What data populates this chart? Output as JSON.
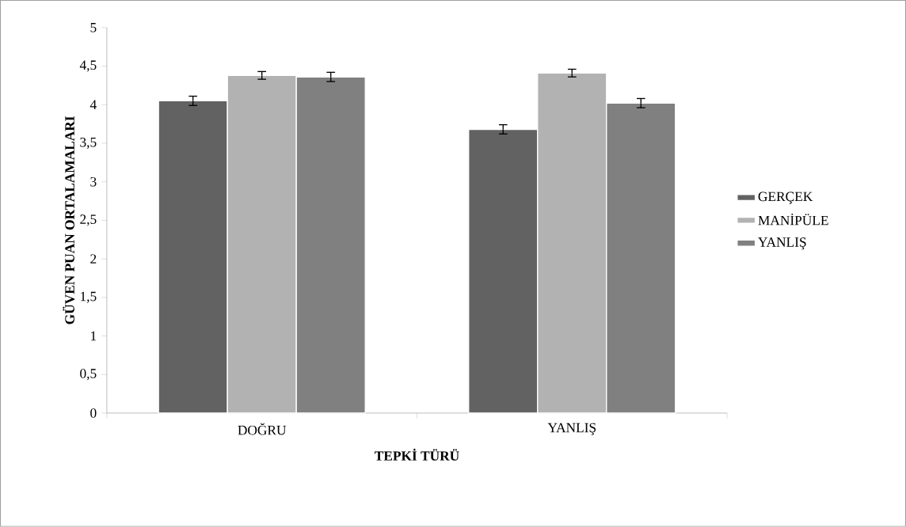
{
  "chart_data": {
    "type": "bar",
    "xlabel": "TEPKİ TÜRÜ",
    "ylabel": "GÜVEN PUAN ORTALAMALARI",
    "categories": [
      "DOĞRU",
      "YANLIŞ"
    ],
    "series": [
      {
        "name": "GERÇEK",
        "color": "#626262",
        "values": [
          4.05,
          3.68
        ],
        "errors": [
          0.06,
          0.06
        ]
      },
      {
        "name": "MANİPÜLE",
        "color": "#b2b2b2",
        "values": [
          4.38,
          4.41
        ],
        "errors": [
          0.05,
          0.05
        ]
      },
      {
        "name": "YANLIŞ",
        "color": "#808080",
        "values": [
          4.36,
          4.02
        ],
        "errors": [
          0.06,
          0.06
        ]
      }
    ],
    "ylim": [
      0,
      5
    ],
    "yticks": [
      0,
      {
        "value": 0.5,
        "label": "0,5"
      },
      1,
      {
        "value": 1.5,
        "label": "1,5"
      },
      2,
      {
        "value": 2.5,
        "label": "2,5"
      },
      3,
      {
        "value": 3.5,
        "label": "3,5"
      },
      4,
      {
        "value": 4.5,
        "label": "4,5"
      },
      5
    ],
    "legend": "right",
    "grid": false
  }
}
